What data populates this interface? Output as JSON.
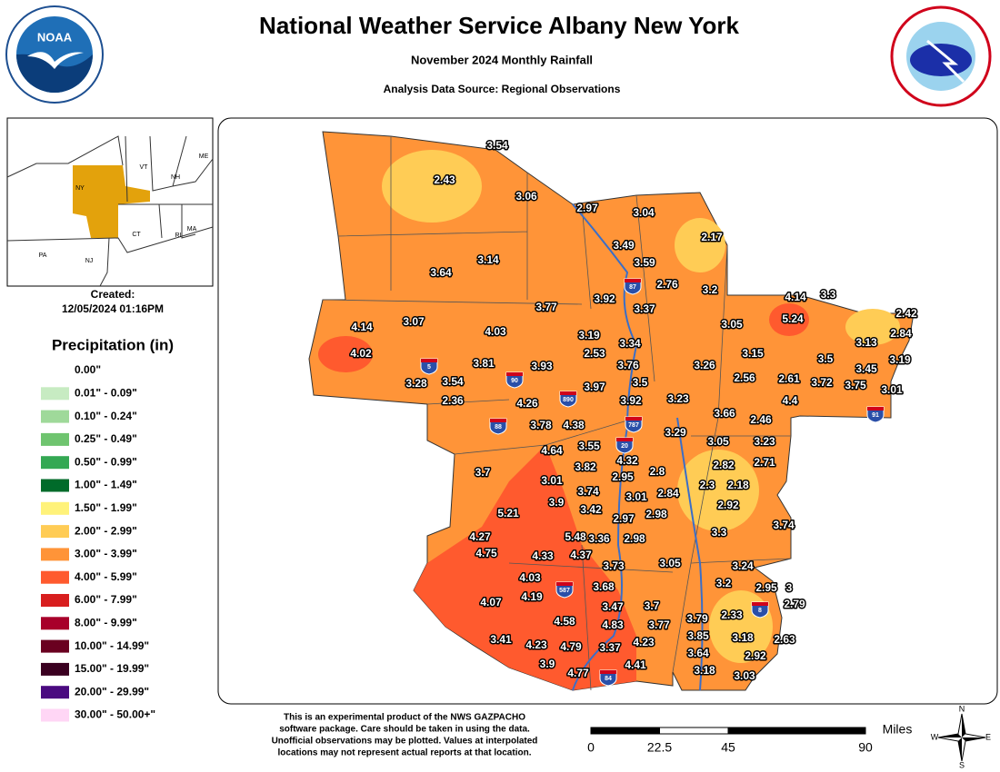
{
  "header": {
    "title": "National Weather Service Albany New York",
    "subtitle": "November 2024 Monthly Rainfall",
    "source": "Analysis Data Source: Regional Observations"
  },
  "logos": {
    "noaa": "NOAA"
  },
  "inset": {
    "labels": [
      "ME",
      "VT",
      "NH",
      "NY",
      "MA",
      "CT",
      "RI",
      "PA",
      "NJ"
    ]
  },
  "created": {
    "label": "Created:",
    "timestamp": "12/05/2024 01:16PM"
  },
  "legend": {
    "title": "Precipitation (in)",
    "items": [
      {
        "label": "0.00\"",
        "color": "#ffffff"
      },
      {
        "label": "0.01\" - 0.09\"",
        "color": "#c7ebc2"
      },
      {
        "label": "0.10\" - 0.24\"",
        "color": "#9fd99a"
      },
      {
        "label": "0.25\" - 0.49\"",
        "color": "#6fc46f"
      },
      {
        "label": "0.50\" - 0.99\"",
        "color": "#34a853"
      },
      {
        "label": "1.00\" - 1.49\"",
        "color": "#006b2a"
      },
      {
        "label": "1.50\" - 1.99\"",
        "color": "#fff27a"
      },
      {
        "label": "2.00\" - 2.99\"",
        "color": "#ffcc55"
      },
      {
        "label": "3.00\" - 3.99\"",
        "color": "#ff9438"
      },
      {
        "label": "4.00\" - 5.99\"",
        "color": "#ff5a2e"
      },
      {
        "label": "6.00\" - 7.99\"",
        "color": "#d81e1e"
      },
      {
        "label": "8.00\" - 9.99\"",
        "color": "#a8002a"
      },
      {
        "label": "10.00\" - 14.99\"",
        "color": "#6a0020"
      },
      {
        "label": "15.00\" - 19.99\"",
        "color": "#3a0020"
      },
      {
        "label": "20.00\" - 29.99\"",
        "color": "#4a0a80"
      },
      {
        "label": "30.00\" - 50.00+\"",
        "color": "#ffd6f5"
      }
    ]
  },
  "stations": [
    3.54,
    2.43,
    3.06,
    2.97,
    3.04,
    2.17,
    3.49,
    3.59,
    3.14,
    3.64,
    2.76,
    3.2,
    4.14,
    3.3,
    2.42,
    3.92,
    3.37,
    3.77,
    3.05,
    5.24,
    2.84,
    4.14,
    3.07,
    4.03,
    3.19,
    3.34,
    3.13,
    3.15,
    3.19,
    4.02,
    2.53,
    3.5,
    3.81,
    3.93,
    3.76,
    3.26,
    3.45,
    2.56,
    2.61,
    3.72,
    3.75,
    3.01,
    3.28,
    3.54,
    3.97,
    3.5,
    2.36,
    4.26,
    3.92,
    3.23,
    4.4,
    3.66,
    2.46,
    3.78,
    4.38,
    3.29,
    3.55,
    3.05,
    3.23,
    4.64,
    4.32,
    3.82,
    2.82,
    2.71,
    3.7,
    3.01,
    2.95,
    2.8,
    3.74,
    2.3,
    2.18,
    2.84,
    3.01,
    3.9,
    3.42,
    2.98,
    2.92,
    2.97,
    5.21,
    3.74,
    3.3,
    4.27,
    5.48,
    3.36,
    2.98,
    4.75,
    4.33,
    4.37,
    3.73,
    3.05,
    3.24,
    4.03,
    3.68,
    3.2,
    2.95,
    3,
    4.19,
    3.47,
    3.7,
    4.07,
    2.79,
    4.58,
    4.83,
    3.77,
    3.79,
    2.33,
    3.41,
    4.23,
    4.79,
    3.37,
    4.23,
    3.85,
    3.18,
    2.63,
    3.64,
    2.92,
    3.9,
    4.41,
    4.77,
    3.18,
    3.03
  ],
  "highways": [
    "87",
    "5",
    "90",
    "890",
    "88",
    "787",
    "20",
    "587",
    "84",
    "91",
    "8"
  ],
  "footer": {
    "disclaimer": [
      "This is an experimental product of the NWS GAZPACHO",
      "software package. Care should be taken in using the data.",
      "Unofficial observations may be plotted. Values at interpolated",
      "locations may not represent actual reports at that location."
    ]
  },
  "scale": {
    "ticks": [
      0,
      22.5,
      45,
      90
    ],
    "unit": "Miles"
  },
  "compass": [
    "N",
    "S",
    "E",
    "W"
  ]
}
